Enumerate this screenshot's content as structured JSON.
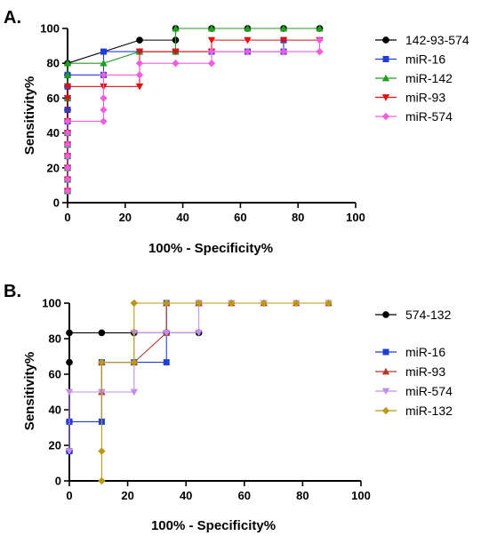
{
  "chart_data": [
    {
      "type": "line",
      "panel": "A.",
      "xlabel": "100% - Specificity%",
      "ylabel": "Sensitivity%",
      "xlim": [
        0,
        100
      ],
      "ylim": [
        0,
        100
      ],
      "xticks": [
        0,
        20,
        40,
        60,
        80,
        100
      ],
      "yticks": [
        0,
        20,
        40,
        60,
        80,
        100
      ],
      "legend_position": "right",
      "series": [
        {
          "name": "142-93-574",
          "color": "#000000",
          "marker": "circle",
          "x": [
            0,
            0,
            0,
            0,
            0,
            0,
            0,
            0,
            0,
            0,
            0,
            0,
            25,
            37.5,
            37.5,
            50,
            62.5,
            75,
            87.5
          ],
          "y": [
            6.7,
            13.3,
            20,
            26.7,
            33.3,
            40,
            46.7,
            53.3,
            60,
            66.7,
            73.3,
            80,
            93.3,
            93.3,
            100,
            100,
            100,
            100,
            100
          ]
        },
        {
          "name": "miR-16",
          "color": "#1f3fd6",
          "marker": "square",
          "x": [
            0,
            0,
            0,
            0,
            0,
            0,
            0,
            0,
            0,
            0,
            0,
            12.5,
            12.5,
            25,
            37.5,
            50,
            62.5,
            75,
            75
          ],
          "y": [
            6.7,
            13.3,
            20,
            26.7,
            33.3,
            40,
            46.7,
            53.3,
            60,
            66.7,
            73.3,
            73.3,
            86.7,
            86.7,
            86.7,
            86.7,
            86.7,
            86.7,
            93.3
          ]
        },
        {
          "name": "miR-142",
          "color": "#1ea01e",
          "marker": "triangle-up",
          "x": [
            0,
            0,
            0,
            0,
            0,
            0,
            0,
            0,
            0,
            12.5,
            25,
            37.5,
            37.5,
            50,
            62.5,
            75,
            87.5
          ],
          "y": [
            6.7,
            13.3,
            20,
            26.7,
            33.3,
            40,
            60,
            73.3,
            80,
            80,
            86.7,
            86.7,
            100,
            100,
            100,
            100,
            100
          ]
        },
        {
          "name": "miR-93",
          "color": "#e01010",
          "marker": "triangle-down",
          "x": [
            0,
            0,
            0,
            0,
            0,
            0,
            0,
            0,
            0,
            12.5,
            25,
            25,
            37.5,
            50,
            50,
            62.5,
            75,
            87.5
          ],
          "y": [
            6.7,
            13.3,
            20,
            26.7,
            33.3,
            40,
            46.7,
            60,
            66.7,
            66.7,
            66.7,
            86.7,
            86.7,
            86.7,
            93.3,
            93.3,
            93.3,
            93.3
          ]
        },
        {
          "name": "miR-574",
          "color": "#f25de0",
          "marker": "diamond",
          "x": [
            0,
            0,
            0,
            0,
            0,
            0,
            0,
            12.5,
            12.5,
            12.5,
            12.5,
            25,
            25,
            37.5,
            50,
            50,
            62.5,
            75,
            87.5,
            87.5
          ],
          "y": [
            6.7,
            13.3,
            20,
            26.7,
            33.3,
            40,
            46.7,
            46.7,
            53.3,
            60,
            73.3,
            73.3,
            80,
            80,
            80,
            86.7,
            86.7,
            86.7,
            86.7,
            93.3
          ]
        }
      ]
    },
    {
      "type": "line",
      "panel": "B.",
      "xlabel": "100% - Specificity%",
      "ylabel": "Sensitivity%",
      "xlim": [
        0,
        100
      ],
      "ylim": [
        0,
        100
      ],
      "xticks": [
        0,
        20,
        40,
        60,
        80,
        100
      ],
      "yticks": [
        0,
        20,
        40,
        60,
        80,
        100
      ],
      "legend_position": "right",
      "series": [
        {
          "name": "574-132",
          "color": "#000000",
          "marker": "circle",
          "x": [
            0,
            0,
            0,
            0,
            11.1,
            22.2,
            33.3,
            44.4
          ],
          "y": [
            16.7,
            33.3,
            66.7,
            83.3,
            83.3,
            83.3,
            83.3,
            83.3
          ]
        },
        {
          "name": "miR-16",
          "color": "#1f3fd6",
          "marker": "square",
          "x": [
            0,
            0,
            11.1,
            11.1,
            22.2,
            33.3,
            33.3,
            44.4
          ],
          "y": [
            16.7,
            33.3,
            33.3,
            66.7,
            66.7,
            66.7,
            100,
            100
          ]
        },
        {
          "name": "miR-93",
          "color": "#b0392c",
          "marker": "triangle-up",
          "x": [
            11.1,
            11.1,
            22.2,
            33.3,
            33.3,
            44.4,
            55.6,
            66.7,
            77.8,
            88.9
          ],
          "y": [
            50,
            66.7,
            66.7,
            83.3,
            100,
            100,
            100,
            100,
            100,
            100
          ]
        },
        {
          "name": "miR-574",
          "color": "#c38ee8",
          "marker": "triangle-down",
          "x": [
            0,
            0,
            11.1,
            22.2,
            22.2,
            33.3,
            44.4,
            44.4,
            55.6,
            66.7,
            77.8,
            88.9
          ],
          "y": [
            16.7,
            50,
            50,
            50,
            83.3,
            83.3,
            83.3,
            100,
            100,
            100,
            100,
            100
          ]
        },
        {
          "name": "miR-132",
          "color": "#b89a18",
          "marker": "diamond",
          "x": [
            11.1,
            11.1,
            11.1,
            22.2,
            22.2,
            33.3,
            44.4,
            55.6,
            66.7,
            77.8,
            88.9
          ],
          "y": [
            0,
            16.7,
            66.7,
            66.7,
            100,
            100,
            100,
            100,
            100,
            100,
            100
          ]
        }
      ]
    }
  ]
}
